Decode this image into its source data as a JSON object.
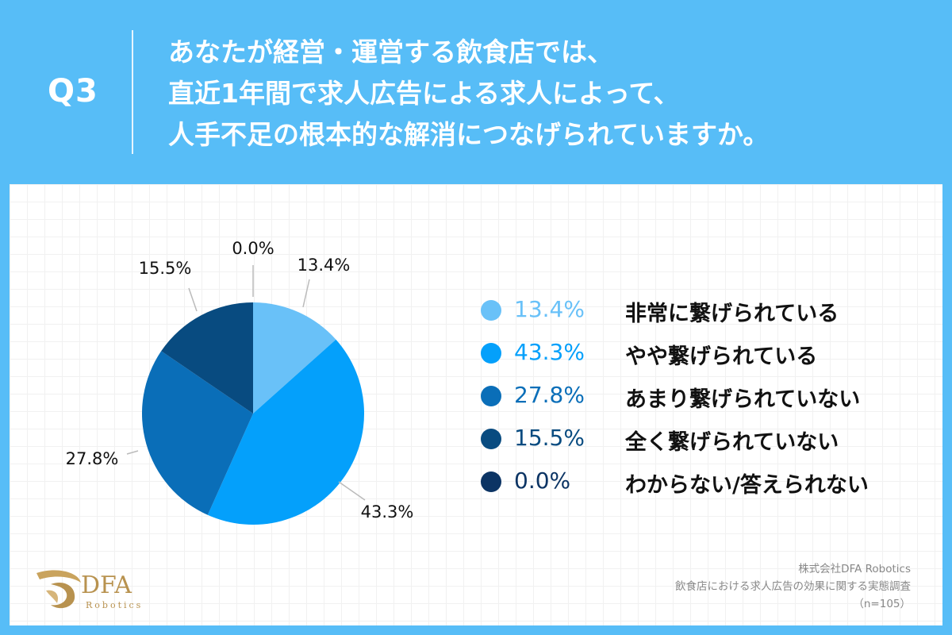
{
  "header": {
    "question_number": "Q3",
    "question_lines": [
      "あなたが経営・運営する飲食店では、",
      "直近1年間で求人広告による求人によって、",
      "人手不足の根本的な解消につなげられていますか。"
    ]
  },
  "chart_data": {
    "type": "pie",
    "title": "",
    "slices": [
      {
        "label": "非常に繋げられている",
        "value": 13.4,
        "display": "13.4%",
        "color": "#69c1f8"
      },
      {
        "label": "やや繋げられている",
        "value": 43.3,
        "display": "43.3%",
        "color": "#04a0fb"
      },
      {
        "label": "あまり繋げられていない",
        "value": 27.8,
        "display": "27.8%",
        "color": "#0a6eb8"
      },
      {
        "label": "全く繋げられていない",
        "value": 15.5,
        "display": "15.5%",
        "color": "#084b80"
      },
      {
        "label": "わからない/答えられない",
        "value": 0.0,
        "display": "0.0%",
        "color": "#0c3464"
      }
    ],
    "legend_placement": "right"
  },
  "logo": {
    "name": "DFA",
    "sub": "Robotics",
    "color": "#b8924f"
  },
  "credit": {
    "company": "株式会社DFA Robotics",
    "survey": "飲食店における求人広告の効果に関する実態調査",
    "sample": "（n=105）"
  },
  "colors": {
    "background": "#57bdf7",
    "panel": "#ffffff"
  }
}
